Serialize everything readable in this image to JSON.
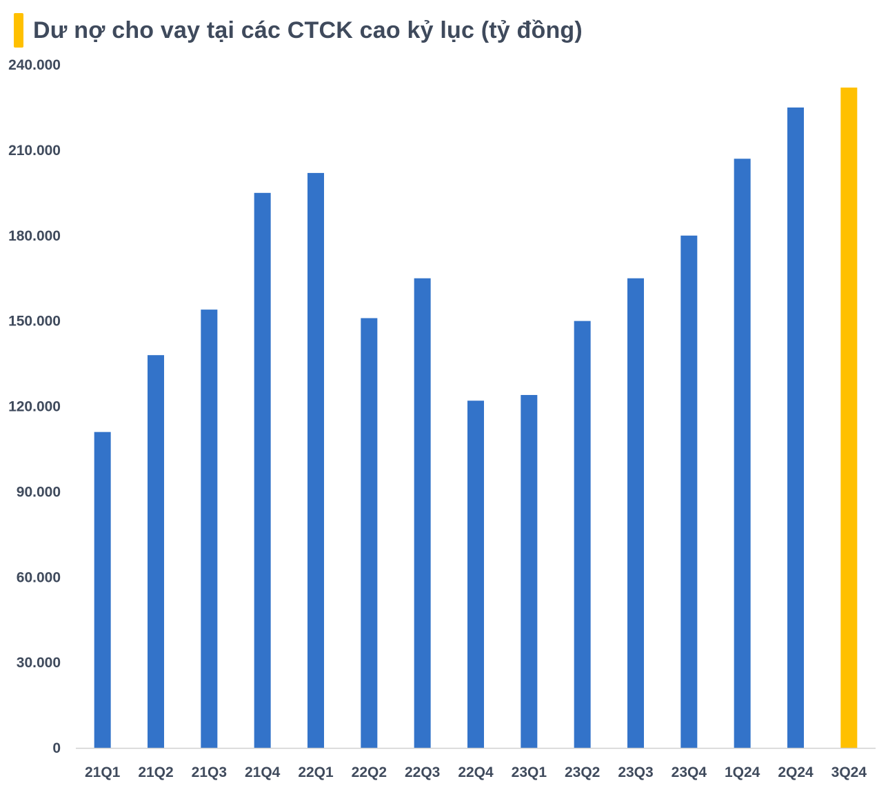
{
  "chart_data": {
    "type": "bar",
    "title": "Dư nợ cho vay tại các CTCK cao kỷ lục (tỷ đồng)",
    "xlabel": "",
    "ylabel": "",
    "categories": [
      "21Q1",
      "21Q2",
      "21Q3",
      "21Q4",
      "22Q1",
      "22Q2",
      "22Q3",
      "22Q4",
      "23Q1",
      "23Q2",
      "23Q3",
      "23Q4",
      "1Q24",
      "2Q24",
      "3Q24"
    ],
    "series": [
      {
        "values": [
          111000,
          138000,
          154000,
          195000,
          202000,
          151000,
          165000,
          122000,
          124000,
          150000,
          165000,
          180000,
          207000,
          225000,
          232000
        ]
      }
    ],
    "highlight_index": 14,
    "ylim": [
      0,
      240000
    ],
    "yticks": [
      0,
      30000,
      60000,
      90000,
      120000,
      150000,
      180000,
      210000,
      240000
    ],
    "ytick_labels": [
      "0",
      "30.000",
      "60.000",
      "90.000",
      "120.000",
      "150.000",
      "180.000",
      "210.000",
      "240.000"
    ],
    "grid": false,
    "legend": "none",
    "colors": {
      "bar": "#3373c9",
      "highlight": "#ffc000",
      "title_accent": "#ffc000",
      "axis_line": "#d0d0d0",
      "text": "#3f4a5c"
    }
  }
}
